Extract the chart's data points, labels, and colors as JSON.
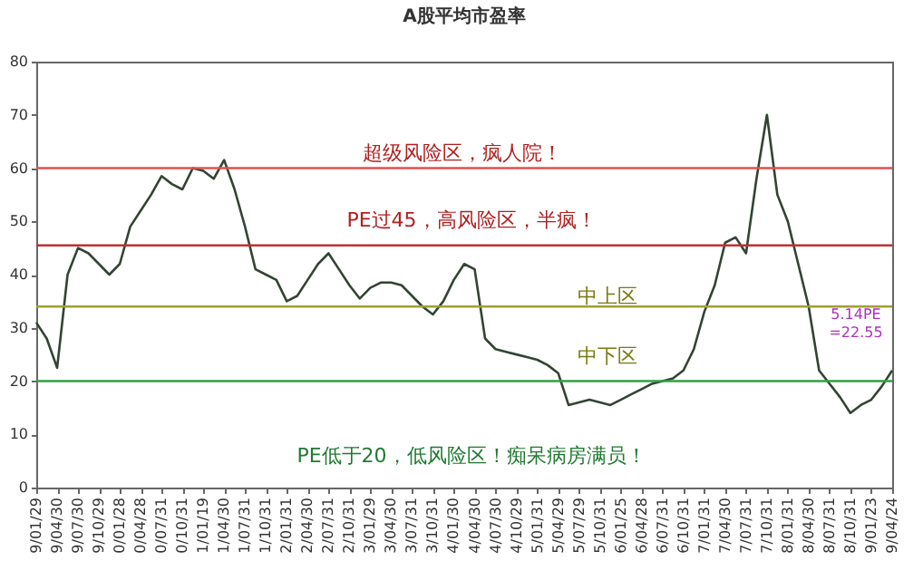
{
  "chart_data": {
    "type": "line",
    "title": "A股平均市盈率",
    "categories": [
      "9/01/29",
      null,
      "9/04/30",
      null,
      "9/07/30",
      null,
      "9/10/29",
      null,
      "0/01/28",
      null,
      "0/04/28",
      null,
      "0/07/31",
      null,
      "0/10/31",
      null,
      "1/01/19",
      null,
      "1/04/30",
      null,
      "1/07/31",
      null,
      "1/10/31",
      null,
      "2/01/31",
      null,
      "2/04/30",
      null,
      "2/07/31",
      null,
      "2/10/31",
      null,
      "3/01/29",
      null,
      "3/04/30",
      null,
      "3/07/31",
      null,
      "3/10/31",
      null,
      "4/01/30",
      null,
      "4/04/30",
      null,
      "4/07/30",
      null,
      "4/10/29",
      null,
      "5/01/31",
      null,
      "5/04/29",
      null,
      "5/07/29",
      null,
      "5/10/31",
      null,
      "6/01/25",
      null,
      "6/04/28",
      null,
      "6/07/31",
      null,
      "6/10/31",
      null,
      "7/01/31",
      null,
      "7/04/30",
      null,
      "7/07/31",
      null,
      "7/10/31",
      null,
      "8/01/31",
      null,
      "8/04/30",
      null,
      "8/07/31",
      null,
      "8/10/31",
      null,
      "9/01/23",
      null,
      "9/04/24"
    ],
    "series": [
      {
        "color": "#334433",
        "values": [
          31,
          28,
          22.5,
          40,
          45,
          44,
          42,
          40,
          42,
          49,
          52,
          55,
          58.5,
          57,
          56,
          60,
          59.5,
          58,
          61.5,
          56,
          49,
          41,
          40,
          39,
          35,
          36,
          39,
          42,
          44,
          41,
          38,
          35.5,
          37.5,
          38.5,
          38.5,
          38,
          36,
          34,
          32.5,
          35,
          39,
          42,
          41,
          28,
          26,
          25.5,
          25,
          24.5,
          24,
          23,
          21.5,
          15.5,
          16,
          16.5,
          16,
          15.5,
          16.5,
          17.5,
          18.5,
          19.5,
          20,
          20.5,
          22,
          26,
          33,
          38,
          46,
          47,
          44,
          58,
          70,
          55,
          50,
          42,
          34,
          22,
          19.5,
          17,
          14,
          15.5,
          16.5,
          19,
          22
        ]
      }
    ],
    "ylim": [
      0,
      80
    ],
    "yticks": [
      0,
      10,
      20,
      30,
      40,
      50,
      60,
      70,
      80
    ],
    "grid": false,
    "ref_lines": [
      {
        "axis": "y",
        "value": 60,
        "color": "#e05050"
      },
      {
        "axis": "y",
        "value": 45.5,
        "color": "#c03030"
      },
      {
        "axis": "y",
        "value": 34,
        "color": "#a0a030"
      },
      {
        "axis": "y",
        "value": 20,
        "color": "#30a040"
      }
    ],
    "annotations": [
      "超级风险区，疯人院！",
      "PE过45，高风险区，半疯！",
      "中上区",
      "中下区",
      "PE低于20，低风险区！痴呆病房满员！",
      "5.14PE =22.55"
    ]
  }
}
